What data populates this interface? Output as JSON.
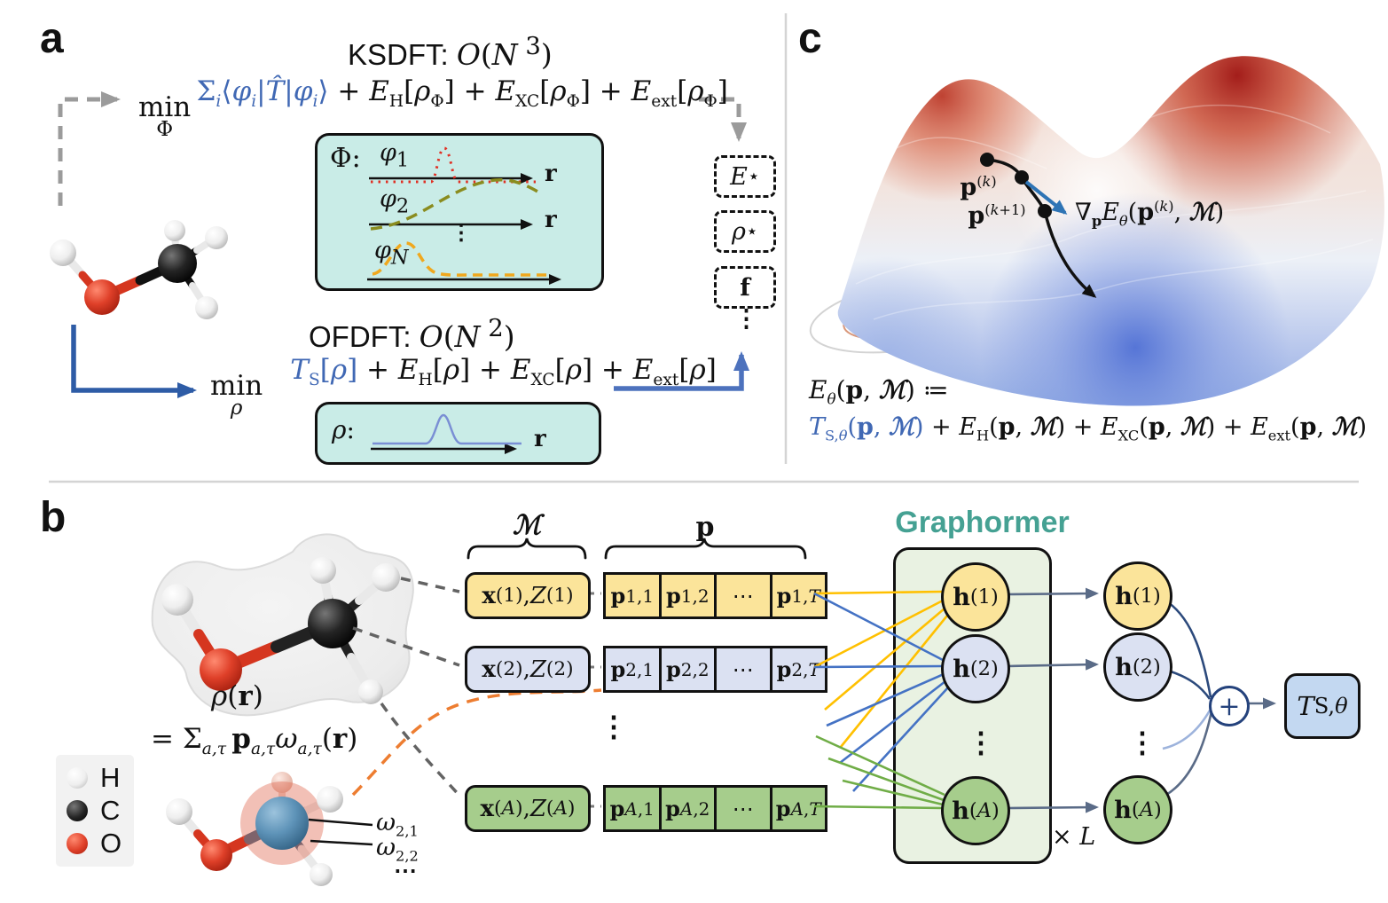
{
  "colors": {
    "accent_blue": "#4068b4",
    "teal_box": "#c9ece7",
    "graphormer_title": "#45a193",
    "graphormer_box": "#e9f2e2",
    "row_yellow": "#fbe49a",
    "row_lavender": "#dbe1f2",
    "row_green": "#a6cd8c",
    "ts_box": "#c3d8f1",
    "navy": "#24427c",
    "connector": "#5a6b87",
    "fan_yellow": "#ffc000",
    "fan_blue": "#4472c4",
    "fan_green": "#70ad47",
    "orange_dash": "#ed7d31",
    "gray_dash": "#9b9b9b",
    "arrow_blue_dark": "#2e5ca6",
    "arrow_blue_light": "#5b7fc7"
  },
  "figure": {
    "panel_a": {
      "label": "a",
      "ksdft_title_html": "KSDFT: <span class='m mi'>O</span><span class='m'>(<span class='mi'>N</span><sup> 3</sup>)</span>",
      "ksdft_equation_html": "<span class='mop'><span>min</span><span class='u'>Φ</span></span>&#8201;<span class='blue'>Σ<sub class='mi'>i</sub>⟨<span class='mi'>φ<sub>i</sub></span>|<span class='mi'>T&#770;</span>|<span class='mi'>φ<sub>i</sub></span>⟩</span> + <span class='mi'>E</span><sub>H</sub>[<span class='mi'>ρ</span><sub>Φ</sub>] + <span class='mi'>E</span><sub>XC</sub>[<span class='mi'>ρ</span><sub>Φ</sub>] + <span class='mi'>E</span><sub>ext</sub>[<span class='mi'>ρ</span><sub>Φ</sub>]",
      "phi_box": {
        "label_html": "Φ:",
        "orbital_1_html": "<span class='mi'>φ</span><sub>1</sub>",
        "orbital_2_html": "<span class='mi'>φ</span><sub>2</sub>",
        "orbital_N_html": "<span class='mi'>φ</span><sub class='mi'>N</sub>",
        "axis_label_html": "<b>r</b>",
        "dots": "⋮"
      },
      "ofdft_title_html": "OFDFT: <span class='m mi'>O</span><span class='m'>(<span class='mi'>N</span><sup> 2</sup>)</span>",
      "ofdft_equation_html": "<span class='mop'><span>min</span><span class='u mi'>ρ</span></span>&#8195;<span class='blue'><span class='mi'>T</span><sub>S</sub>[<span class='mi'>ρ</span>]</span> + <span class='mi'>E</span><sub>H</sub>[<span class='mi'>ρ</span>] + <span class='mi'>E</span><sub>XC</sub>[<span class='mi'>ρ</span>] + <span class='mi'>E</span><sub>ext</sub>[<span class='mi'>ρ</span>]",
      "rho_box": {
        "label_html": "<span class='mi'>ρ</span>:",
        "axis_label_html": "<b>r</b>"
      },
      "output_energy_html": "<span class='mi'>E</span><sup>⋆</sup>",
      "output_density_html": "<span class='mi'>ρ</span><sup>⋆</sup>",
      "output_forces_html": "<b>f</b>",
      "output_dots": "⋮"
    },
    "panel_c": {
      "label": "c",
      "p_k_html": "<b>p</b><sup>(<span class='mi'>k</span>)</sup>",
      "p_k1_html": "<b>p</b><sup>(<span class='mi'>k</span>+1)</sup>",
      "gradient_html": "∇<sub><b>p</b></sub><span class='mi'>E</span><sub class='mi'>θ</sub>(<b>p</b><sup>(<span class='mi'>k</span>)</sup>, <span class='scr'>ℳ</span>)",
      "eq_line1_html": "<span class='mi'>E</span><sub class='mi'>θ</sub>(<b>p</b>, <span class='scr'>ℳ</span>) ≔",
      "eq_line2_html": "<span class='blue'><span class='mi'>T</span><sub>S,<span class='mi'>θ</span></sub>(<b>p</b>, <span class='scr'>ℳ</span>)</span> + <span class='mi'>E</span><sub>H</sub>(<b>p</b>, <span class='scr'>ℳ</span>) + <span class='mi'>E</span><sub>XC</sub>(<b>p</b>, <span class='scr'>ℳ</span>) + <span class='mi'>E</span><sub>ext</sub>(<b>p</b>, <span class='scr'>ℳ</span>)"
    },
    "panel_b": {
      "label": "b",
      "density_label_html": "<span class='mi'>ρ</span>(<b>r</b>)",
      "expansion_html": "= Σ<sub class='mi'>a,τ</sub>&#8201;<b>p</b><sub class='mi'>a,τ</sub><span class='mi'>ω</span><sub class='mi'>a,τ</sub>(<b>r</b>)",
      "legend": {
        "items": [
          {
            "element": "H"
          },
          {
            "element": "C"
          },
          {
            "element": "O"
          }
        ]
      },
      "omega_1_html": "<span class='mi'>ω</span><sub>2,1</sub>",
      "omega_2_html": "<span class='mi'>ω</span><sub>2,2</sub>",
      "omega_more": "⋯",
      "brace_m_html": "<span class='scr'>ℳ</span>",
      "brace_p_html": "<b>p</b>",
      "rows": [
        {
          "feature_html": "<b>x</b><sup>(1)</sup>, <span class='mi'>Z</span><sup>(1)</sup>",
          "cells": [
            "<b>p</b><sub>1,1</sub>",
            "<b>p</b><sub>1,2</sub>",
            "⋯",
            "<b>p</b><sub>1,<span class='mi'>T</span></sub>"
          ]
        },
        {
          "feature_html": "<b>x</b><sup>(2)</sup>, <span class='mi'>Z</span><sup>(2)</sup>",
          "cells": [
            "<b>p</b><sub>2,1</sub>",
            "<b>p</b><sub>2,2</sub>",
            "⋯",
            "<b>p</b><sub>2,<span class='mi'>T</span></sub>"
          ]
        },
        {
          "feature_html": "<b>x</b><sup>(<span class='mi'>A</span>)</sup>, <span class='mi'>Z</span><sup>(<span class='mi'>A</span>)</sup>",
          "cells": [
            "<b>p</b><sub><span class='mi'>A</span>,1</sub>",
            "<b>p</b><sub><span class='mi'>A</span>,2</sub>",
            "⋯",
            "<b>p</b><sub><span class='mi'>A</span>,<span class='mi'>T</span></sub>"
          ]
        }
      ],
      "rows_dots": "⋮",
      "graphormer": {
        "title": "Graphormer",
        "node_1_html": "<b>h</b><sup>(1)</sup>",
        "node_2_html": "<b>h</b><sup>(2)</sup>",
        "node_A_html": "<b>h</b><sup>(<span class='mi'>A</span>)</sup>",
        "dots": "⋮",
        "layers_html": "× <span class='mi'>L</span>"
      },
      "out_node_1_html": "<b>h</b><sup>(1)</sup>",
      "out_node_2_html": "<b>h</b><sup>(2)</sup>",
      "out_node_A_html": "<b>h</b><sup>(<span class='mi'>A</span>)</sup>",
      "out_dots": "⋮",
      "plus_label": "+",
      "ts_box_html": "<span class='mi'>T</span><sub>S,<span class='mi'>θ</span></sub>"
    }
  }
}
